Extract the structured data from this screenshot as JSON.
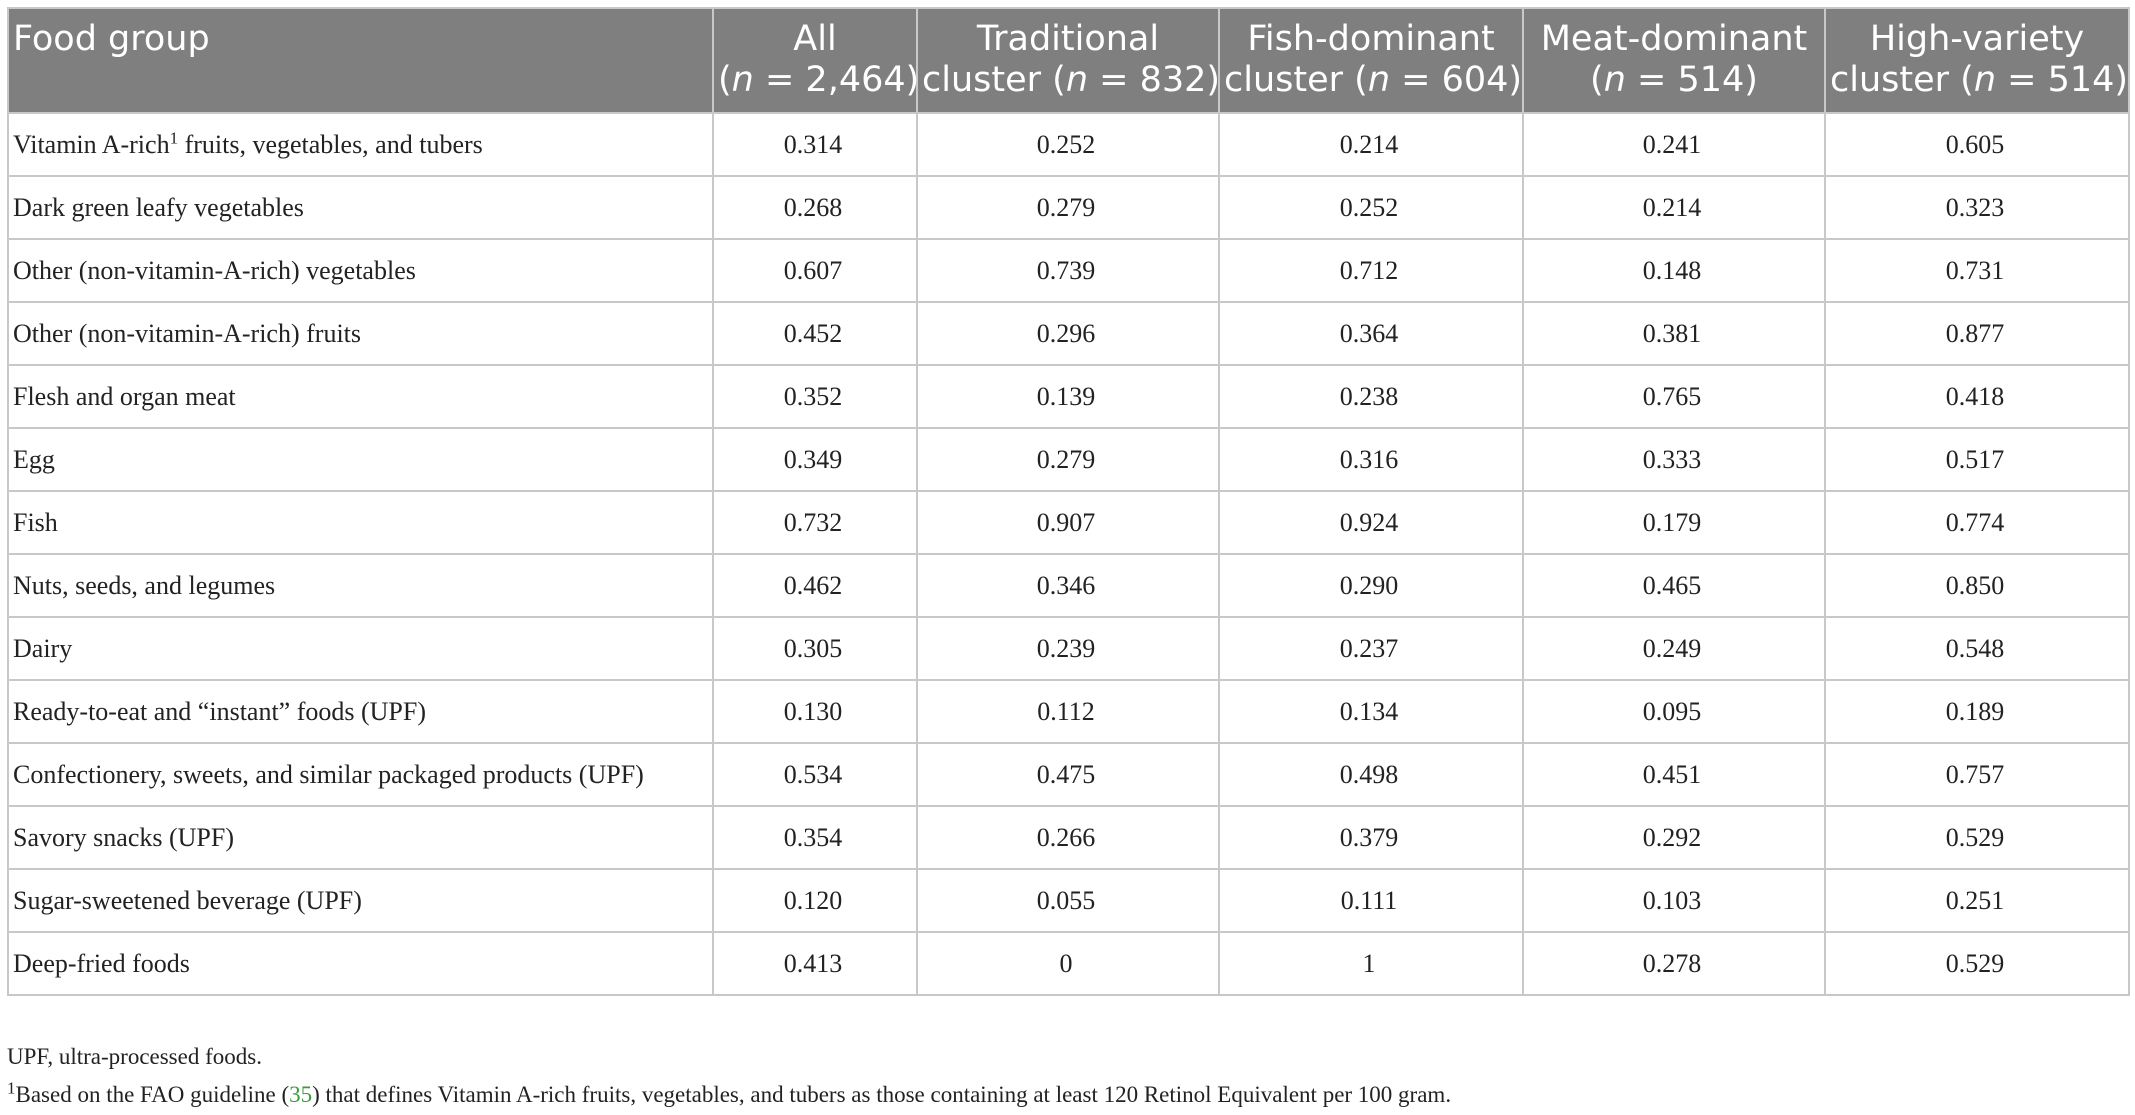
{
  "table": {
    "header": [
      {
        "text": "Food group"
      },
      {
        "line1": "All",
        "pre": "(",
        "n": "n",
        "rest": " = 2,464)"
      },
      {
        "line1": "Traditional",
        "pre": "cluster (",
        "n": "n",
        "rest": " = 832)"
      },
      {
        "line1": "Fish-dominant",
        "pre": "cluster (",
        "n": "n",
        "rest": " = 604)"
      },
      {
        "line1": "Meat-dominant",
        "pre": "(",
        "n": "n",
        "rest": " = 514)"
      },
      {
        "line1": "High-variety",
        "pre": "cluster (",
        "n": "n",
        "rest": " = 514)"
      }
    ],
    "rows": [
      {
        "label": {
          "pre": "Vitamin A-rich",
          "sup": "1",
          "post": " fruits, vegetables, and tubers"
        },
        "values": [
          "0.314",
          "0.252",
          "0.214",
          "0.241",
          "0.605"
        ]
      },
      {
        "label": "Dark green leafy vegetables",
        "values": [
          "0.268",
          "0.279",
          "0.252",
          "0.214",
          "0.323"
        ]
      },
      {
        "label": "Other (non-vitamin-A-rich) vegetables",
        "values": [
          "0.607",
          "0.739",
          "0.712",
          "0.148",
          "0.731"
        ]
      },
      {
        "label": "Other (non-vitamin-A-rich) fruits",
        "values": [
          "0.452",
          "0.296",
          "0.364",
          "0.381",
          "0.877"
        ]
      },
      {
        "label": "Flesh and organ meat",
        "values": [
          "0.352",
          "0.139",
          "0.238",
          "0.765",
          "0.418"
        ]
      },
      {
        "label": "Egg",
        "values": [
          "0.349",
          "0.279",
          "0.316",
          "0.333",
          "0.517"
        ]
      },
      {
        "label": "Fish",
        "values": [
          "0.732",
          "0.907",
          "0.924",
          "0.179",
          "0.774"
        ]
      },
      {
        "label": "Nuts, seeds, and legumes",
        "values": [
          "0.462",
          "0.346",
          "0.290",
          "0.465",
          "0.850"
        ]
      },
      {
        "label": "Dairy",
        "values": [
          "0.305",
          "0.239",
          "0.237",
          "0.249",
          "0.548"
        ]
      },
      {
        "label": "Ready-to-eat and “instant” foods (UPF)",
        "values": [
          "0.130",
          "0.112",
          "0.134",
          "0.095",
          "0.189"
        ]
      },
      {
        "label": "Confectionery, sweets, and similar packaged products (UPF)",
        "values": [
          "0.534",
          "0.475",
          "0.498",
          "0.451",
          "0.757"
        ]
      },
      {
        "label": "Savory snacks (UPF)",
        "values": [
          "0.354",
          "0.266",
          "0.379",
          "0.292",
          "0.529"
        ]
      },
      {
        "label": "Sugar-sweetened beverage (UPF)",
        "values": [
          "0.120",
          "0.055",
          "0.111",
          "0.103",
          "0.251"
        ]
      },
      {
        "label": "Deep-fried foods",
        "values": [
          "0.413",
          "0",
          "1",
          "0.278",
          "0.529"
        ]
      }
    ]
  },
  "notes": {
    "abbrev": "UPF, ultra-processed foods.",
    "footnote": {
      "sup": "1",
      "pre": "Based on the FAO guideline (",
      "ref": "35",
      "post": ") that defines Vitamin A-rich fruits, vegetables, and tubers as those containing at least 120 Retinol Equivalent per 100 gram."
    }
  }
}
